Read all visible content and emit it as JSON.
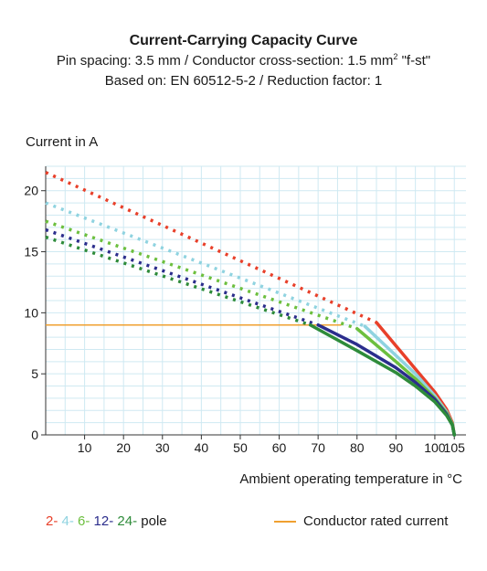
{
  "title": "Current-Carrying Capacity Curve",
  "subtitle_main": "Pin spacing: 3.5 mm / Conductor cross-section: 1.5 mm",
  "subtitle_sup": "2",
  "subtitle_tail": " \"f-st\"",
  "subtitle2": "Based on: EN 60512-5-2 / Reduction factor: 1",
  "colors": {
    "two_pole": "#e8402a",
    "four_pole": "#8fd3e0",
    "six_pole": "#6cbf3e",
    "twelve_pole": "#2b2d8c",
    "twentyfour_pole": "#2e8b3a",
    "rated": "#f0a030",
    "grid": "#cfe9f2"
  },
  "legend": {
    "poles": [
      {
        "label": "2-",
        "color": "#e8402a"
      },
      {
        "label": "4-",
        "color": "#8fd3e0"
      },
      {
        "label": "6-",
        "color": "#6cbf3e"
      },
      {
        "label": "12-",
        "color": "#2b2d8c"
      },
      {
        "label": "24-",
        "color": "#2e8b3a"
      }
    ],
    "pole_suffix": " pole",
    "rated_label": "Conductor rated current"
  },
  "chart_data": {
    "type": "line",
    "ylabel": "Current in A",
    "xlabel": "Ambient operating temperature in °C",
    "xlim": [
      0,
      108
    ],
    "ylim": [
      0,
      22
    ],
    "xticks": [
      10,
      20,
      30,
      40,
      50,
      60,
      70,
      80,
      90,
      100,
      105
    ],
    "yticks": [
      0,
      5,
      10,
      15,
      20
    ],
    "grid": true,
    "rated_current": {
      "name": "Conductor rated current",
      "x": [
        0,
        76
      ],
      "y": [
        9,
        9
      ]
    },
    "series": [
      {
        "name": "2-",
        "color": "#e8402a",
        "dashed": {
          "x": [
            0,
            85
          ],
          "y": [
            21.5,
            9.2
          ]
        },
        "solid": {
          "x": [
            85,
            90,
            95,
            100,
            103,
            104.5,
            105
          ],
          "y": [
            9.2,
            7.3,
            5.4,
            3.5,
            2.1,
            1.0,
            0
          ]
        }
      },
      {
        "name": "4-",
        "color": "#8fd3e0",
        "dashed": {
          "x": [
            0,
            82
          ],
          "y": [
            19.0,
            8.9
          ]
        },
        "solid": {
          "x": [
            82,
            90,
            95,
            100,
            103,
            104.5,
            105
          ],
          "y": [
            8.9,
            6.5,
            5.0,
            3.2,
            1.9,
            0.9,
            0
          ]
        }
      },
      {
        "name": "6-",
        "color": "#6cbf3e",
        "dashed": {
          "x": [
            0,
            80
          ],
          "y": [
            17.5,
            8.7
          ]
        },
        "solid": {
          "x": [
            80,
            90,
            95,
            100,
            103,
            104.5,
            105
          ],
          "y": [
            8.7,
            6.0,
            4.6,
            3.0,
            1.8,
            0.9,
            0
          ]
        }
      },
      {
        "name": "12-",
        "color": "#2b2d8c",
        "dashed": {
          "x": [
            0,
            70
          ],
          "y": [
            16.8,
            9.0
          ]
        },
        "solid": {
          "x": [
            70,
            80,
            90,
            95,
            100,
            103,
            104.5,
            105
          ],
          "y": [
            9.0,
            7.4,
            5.5,
            4.3,
            2.9,
            1.7,
            0.8,
            0
          ]
        }
      },
      {
        "name": "24-",
        "color": "#2e8b3a",
        "dashed": {
          "x": [
            0,
            68
          ],
          "y": [
            16.2,
            9.0
          ]
        },
        "solid": {
          "x": [
            68,
            80,
            90,
            95,
            100,
            103,
            104.5,
            105
          ],
          "y": [
            9.0,
            6.9,
            5.1,
            4.0,
            2.7,
            1.6,
            0.8,
            0
          ]
        }
      }
    ]
  }
}
